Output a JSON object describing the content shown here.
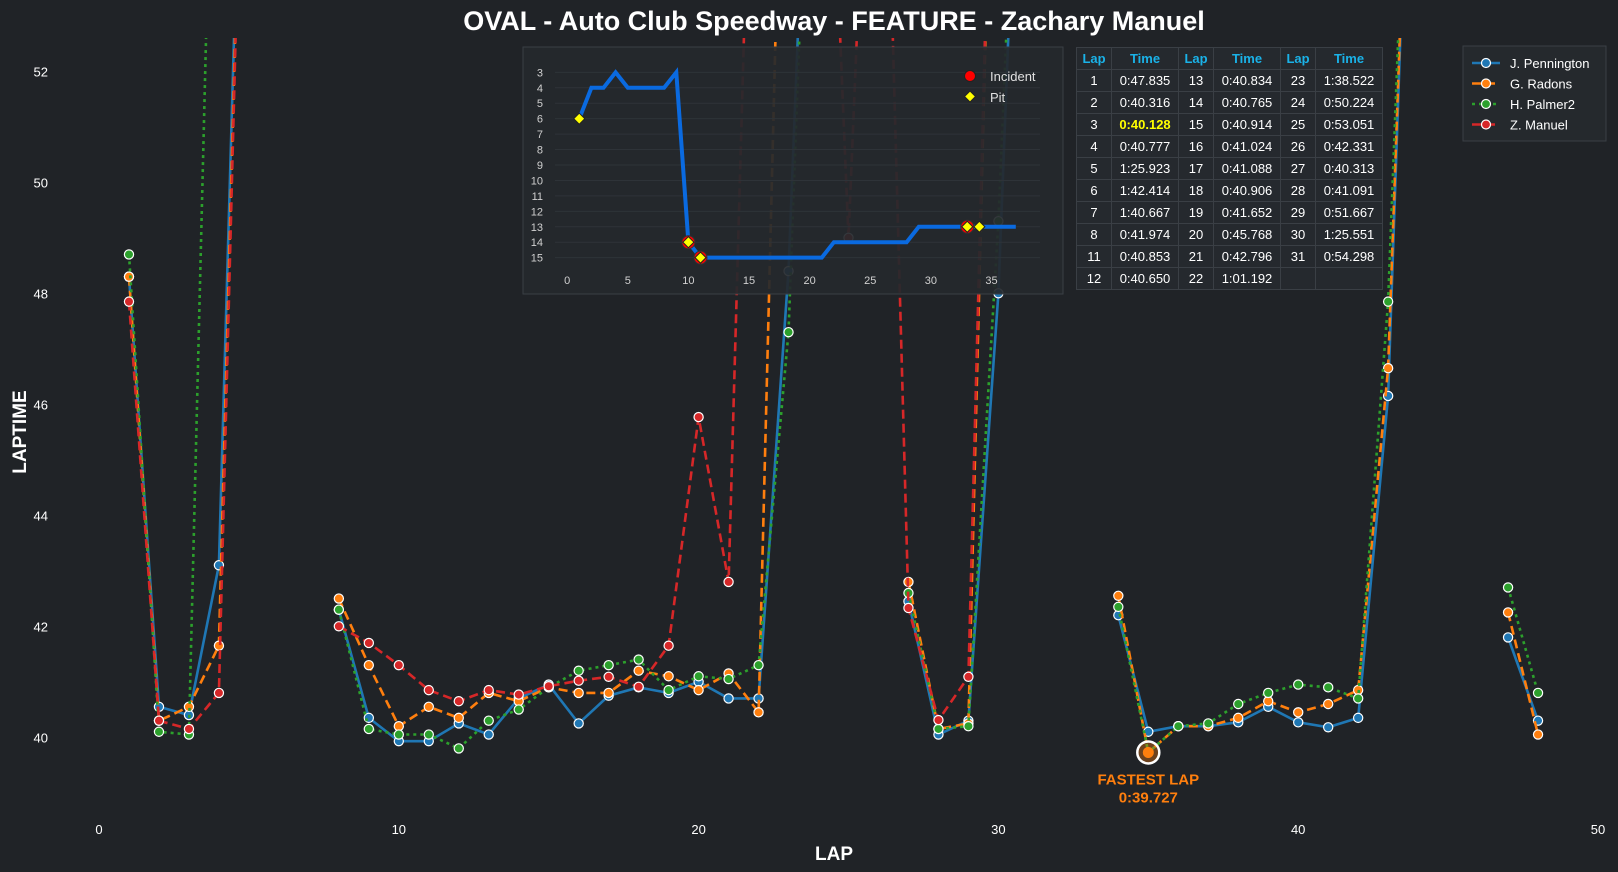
{
  "chart_data": {
    "type": "line",
    "title": "OVAL - Auto Club Speedway - FEATURE - Zachary Manuel",
    "xlabel": "LAP",
    "ylabel": "LAPTIME",
    "xlim": [
      0,
      50
    ],
    "ylim": [
      38.6,
      52.6
    ],
    "xticks": [
      0,
      10,
      20,
      30,
      40,
      50
    ],
    "yticks": [
      40,
      42,
      44,
      46,
      48,
      50,
      52
    ],
    "legend_position": "top-right",
    "series": [
      {
        "name": "J. Pennington",
        "color": "#1f77b4",
        "dash": "solid",
        "points": [
          [
            1,
            48.3
          ],
          [
            2,
            40.55
          ],
          [
            3,
            40.4
          ],
          [
            4,
            43.1
          ],
          [
            5,
            62
          ],
          [
            8,
            42.3
          ],
          [
            9,
            40.35
          ],
          [
            10,
            39.93
          ],
          [
            11,
            39.93
          ],
          [
            12,
            40.25
          ],
          [
            13,
            40.05
          ],
          [
            14,
            40.7
          ],
          [
            15,
            40.95
          ],
          [
            16,
            40.25
          ],
          [
            17,
            40.75
          ],
          [
            18,
            40.9
          ],
          [
            19,
            40.8
          ],
          [
            20,
            41.0
          ],
          [
            21,
            40.7
          ],
          [
            22,
            40.7
          ],
          [
            23,
            48.4
          ],
          [
            24,
            62
          ],
          [
            27,
            42.45
          ],
          [
            28,
            40.05
          ],
          [
            29,
            40.3
          ],
          [
            30,
            48.0
          ],
          [
            31,
            62
          ],
          [
            34,
            42.2
          ],
          [
            35,
            40.1
          ],
          [
            36,
            40.2
          ],
          [
            37,
            40.2
          ],
          [
            38,
            40.27
          ],
          [
            39,
            40.55
          ],
          [
            40,
            40.27
          ],
          [
            41,
            40.18
          ],
          [
            42,
            40.35
          ],
          [
            43,
            46.15
          ],
          [
            44,
            62
          ],
          [
            47,
            41.8
          ],
          [
            48,
            40.3
          ]
        ]
      },
      {
        "name": "G. Radons",
        "color": "#ff7f0e",
        "dash": "dashed",
        "points": [
          [
            1,
            48.3
          ],
          [
            2,
            40.3
          ],
          [
            3,
            40.55
          ],
          [
            4,
            41.65
          ],
          [
            5,
            62
          ],
          [
            8,
            42.5
          ],
          [
            9,
            41.3
          ],
          [
            10,
            40.2
          ],
          [
            11,
            40.55
          ],
          [
            12,
            40.35
          ],
          [
            13,
            40.8
          ],
          [
            14,
            40.65
          ],
          [
            15,
            40.9
          ],
          [
            16,
            40.8
          ],
          [
            17,
            40.8
          ],
          [
            18,
            41.2
          ],
          [
            19,
            41.1
          ],
          [
            20,
            40.85
          ],
          [
            21,
            41.15
          ],
          [
            22,
            40.45
          ],
          [
            23,
            62
          ],
          [
            27,
            42.8
          ],
          [
            28,
            40.15
          ],
          [
            29,
            40.25
          ],
          [
            30,
            62
          ],
          [
            34,
            42.55
          ],
          [
            35,
            39.727
          ],
          [
            36,
            40.2
          ],
          [
            37,
            40.2
          ],
          [
            38,
            40.35
          ],
          [
            39,
            40.65
          ],
          [
            40,
            40.45
          ],
          [
            41,
            40.6
          ],
          [
            42,
            40.85
          ],
          [
            43,
            46.65
          ],
          [
            44,
            62
          ],
          [
            47,
            42.25
          ],
          [
            48,
            40.05
          ]
        ]
      },
      {
        "name": "H. Palmer2",
        "color": "#2ca02c",
        "dash": "dotted",
        "points": [
          [
            1,
            48.7
          ],
          [
            2,
            40.1
          ],
          [
            3,
            40.05
          ],
          [
            4,
            62
          ],
          [
            8,
            42.3
          ],
          [
            9,
            40.15
          ],
          [
            10,
            40.05
          ],
          [
            11,
            40.05
          ],
          [
            12,
            39.8
          ],
          [
            13,
            40.3
          ],
          [
            14,
            40.5
          ],
          [
            15,
            40.9
          ],
          [
            16,
            41.2
          ],
          [
            17,
            41.3
          ],
          [
            18,
            41.4
          ],
          [
            19,
            40.85
          ],
          [
            20,
            41.1
          ],
          [
            21,
            41.05
          ],
          [
            22,
            41.3
          ],
          [
            23,
            47.3
          ],
          [
            24,
            62
          ],
          [
            27,
            42.6
          ],
          [
            28,
            40.15
          ],
          [
            29,
            40.2
          ],
          [
            30,
            49.3
          ],
          [
            31,
            62
          ],
          [
            34,
            42.35
          ],
          [
            35,
            39.727
          ],
          [
            36,
            40.2
          ],
          [
            37,
            40.25
          ],
          [
            38,
            40.6
          ],
          [
            39,
            40.8
          ],
          [
            40,
            40.95
          ],
          [
            41,
            40.9
          ],
          [
            42,
            40.7
          ],
          [
            43,
            47.85
          ],
          [
            44,
            62
          ],
          [
            47,
            42.7
          ],
          [
            48,
            40.8
          ]
        ]
      },
      {
        "name": "Z. Manuel",
        "color": "#d62728",
        "dash": "dashed",
        "points": [
          [
            1,
            47.85
          ],
          [
            2,
            40.3
          ],
          [
            3,
            40.15
          ],
          [
            4,
            40.8
          ],
          [
            5,
            62
          ],
          [
            8,
            42.0
          ],
          [
            9,
            41.7
          ],
          [
            10,
            41.3
          ],
          [
            11,
            40.85
          ],
          [
            12,
            40.65
          ],
          [
            13,
            40.85
          ],
          [
            14,
            40.77
          ],
          [
            15,
            40.92
          ],
          [
            16,
            41.02
          ],
          [
            17,
            41.09
          ],
          [
            18,
            40.91
          ],
          [
            19,
            41.65
          ],
          [
            20,
            45.77
          ],
          [
            21,
            42.8
          ],
          [
            22,
            62
          ],
          [
            24,
            62
          ],
          [
            25,
            49.0
          ],
          [
            26,
            62
          ],
          [
            27,
            42.33
          ],
          [
            28,
            40.31
          ],
          [
            29,
            41.09
          ],
          [
            30,
            62
          ]
        ]
      }
    ],
    "annotation": {
      "text": "FASTEST LAP\n0:39.727",
      "lap": 35,
      "time": 39.727,
      "color": "#ff7f0e"
    },
    "inset": {
      "type": "line",
      "series_name": "Position",
      "color": "#0a6ae0",
      "xlim": [
        -1,
        39
      ],
      "xticks": [
        0,
        5,
        10,
        15,
        20,
        25,
        30,
        35
      ],
      "ylim": [
        15.8,
        2.2
      ],
      "yticks": [
        3,
        4,
        5,
        6,
        7,
        8,
        9,
        10,
        11,
        12,
        13,
        14,
        15
      ],
      "points": [
        [
          1,
          6
        ],
        [
          2,
          4
        ],
        [
          3,
          4
        ],
        [
          4,
          3
        ],
        [
          5,
          4
        ],
        [
          6,
          4
        ],
        [
          7,
          4
        ],
        [
          8,
          4
        ],
        [
          9,
          3
        ],
        [
          10,
          14
        ],
        [
          11,
          15
        ],
        [
          12,
          15
        ],
        [
          13,
          15
        ],
        [
          14,
          15
        ],
        [
          15,
          15
        ],
        [
          16,
          15
        ],
        [
          17,
          15
        ],
        [
          18,
          15
        ],
        [
          19,
          15
        ],
        [
          20,
          15
        ],
        [
          21,
          15
        ],
        [
          22,
          14
        ],
        [
          23,
          14
        ],
        [
          24,
          14
        ],
        [
          25,
          14
        ],
        [
          26,
          14
        ],
        [
          27,
          14
        ],
        [
          28,
          14
        ],
        [
          29,
          13
        ],
        [
          30,
          13
        ],
        [
          31,
          13
        ],
        [
          32,
          13
        ],
        [
          33,
          13
        ],
        [
          34,
          13
        ],
        [
          35,
          13
        ],
        [
          36,
          13
        ],
        [
          37,
          13
        ]
      ],
      "incidents": [
        [
          10,
          14
        ],
        [
          11,
          15
        ],
        [
          33,
          13
        ]
      ],
      "pits": [
        [
          1,
          6
        ],
        [
          10,
          14
        ],
        [
          11,
          15
        ],
        [
          33,
          13
        ],
        [
          34,
          13
        ]
      ],
      "legend": [
        "Incident",
        "Pit"
      ]
    },
    "table": {
      "headers": [
        "Lap",
        "Time",
        "Lap",
        "Time",
        "Lap",
        "Time"
      ],
      "best_lap": "3",
      "rows": [
        [
          "1",
          "0:47.835",
          "13",
          "0:40.834",
          "23",
          "1:38.522"
        ],
        [
          "2",
          "0:40.316",
          "14",
          "0:40.765",
          "24",
          "0:50.224"
        ],
        [
          "3",
          "0:40.128",
          "15",
          "0:40.914",
          "25",
          "0:53.051"
        ],
        [
          "4",
          "0:40.777",
          "16",
          "0:41.024",
          "26",
          "0:42.331"
        ],
        [
          "5",
          "1:25.923",
          "17",
          "0:41.088",
          "27",
          "0:40.313"
        ],
        [
          "6",
          "1:42.414",
          "18",
          "0:40.906",
          "28",
          "0:41.091"
        ],
        [
          "7",
          "1:40.667",
          "19",
          "0:41.652",
          "29",
          "0:51.667"
        ],
        [
          "8",
          "0:41.974",
          "20",
          "0:45.768",
          "30",
          "1:25.551"
        ],
        [
          "11",
          "0:40.853",
          "21",
          "0:42.796",
          "31",
          "0:54.298"
        ],
        [
          "12",
          "0:40.650",
          "22",
          "1:01.192",
          "",
          ""
        ]
      ]
    }
  }
}
